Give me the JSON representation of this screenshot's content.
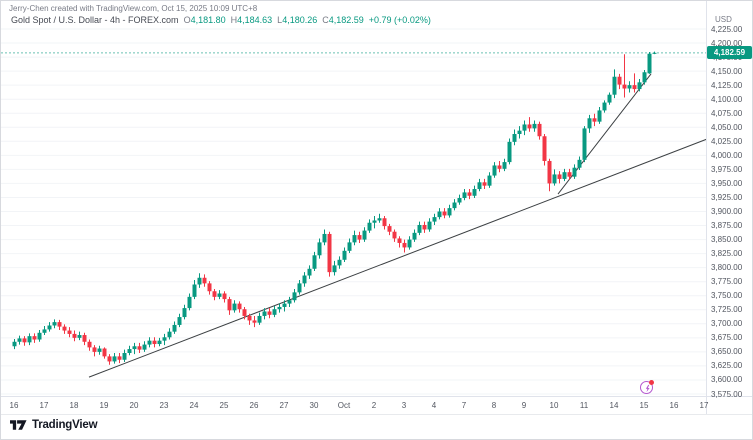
{
  "header": {
    "attribution": "Jerry-Chen created with TradingView.com, Oct 15, 2025 10:09 UTC+8",
    "symbol_title": "Gold Spot / U.S. Dollar - 4h - FOREX.com",
    "ohlc": {
      "o_label": "O",
      "o": "4,181.80",
      "h_label": "H",
      "h": "4,184.63",
      "l_label": "L",
      "l": "4,180.26",
      "c_label": "C",
      "c": "4,182.59"
    },
    "change": "+0.79 (+0.02%)"
  },
  "price_axis": {
    "currency": "USD",
    "current_price": "4,182.59",
    "ticks": [
      "4,225.00",
      "4,200.00",
      "4,175.00",
      "4,150.00",
      "4,125.00",
      "4,100.00",
      "4,075.00",
      "4,050.00",
      "4,025.00",
      "4,000.00",
      "3,975.00",
      "3,950.00",
      "3,925.00",
      "3,900.00",
      "3,875.00",
      "3,850.00",
      "3,825.00",
      "3,800.00",
      "3,775.00",
      "3,750.00",
      "3,725.00",
      "3,700.00",
      "3,675.00",
      "3,650.00",
      "3,625.00",
      "3,600.00",
      "3,575.00"
    ]
  },
  "time_axis": {
    "labels": [
      "16",
      "17",
      "18",
      "19",
      "20",
      "23",
      "24",
      "25",
      "26",
      "27",
      "30",
      "Oct",
      "2",
      "3",
      "4",
      "7",
      "8",
      "9",
      "10",
      "11",
      "14",
      "15",
      "16",
      "17"
    ]
  },
  "footer": {
    "brand": "TradingView"
  },
  "colors": {
    "up": "#089981",
    "down": "#F23645",
    "grid": "#f2f4f7",
    "trendline": "#3c4043",
    "price_line": "#089981",
    "label_bg": "#089981",
    "event": "#b558cf",
    "event_dot": "#f23645"
  },
  "chart_data": {
    "type": "candlestick",
    "title": "Gold Spot / U.S. Dollar",
    "interval": "4h",
    "exchange": "FOREX.com",
    "ylabel": "USD",
    "price_range": [
      3575,
      4225
    ],
    "tick_step": 25,
    "grid": "horizontal-faint",
    "current": {
      "open": 4181.8,
      "high": 4184.63,
      "low": 4180.26,
      "close": 4182.59,
      "change": 0.79,
      "change_pct": 0.02
    },
    "price_line": 4182.59,
    "trendlines": [
      {
        "from_index": 14.9,
        "from_price": 3605,
        "to_index": 138.5,
        "to_price": 4029
      },
      {
        "from_index": 108.7,
        "from_price": 3931,
        "to_index": 127.3,
        "to_price": 4145
      }
    ],
    "candles": [
      [
        3660,
        3673,
        3655,
        3668
      ],
      [
        3668,
        3679,
        3663,
        3674
      ],
      [
        3674,
        3678,
        3661,
        3667
      ],
      [
        3667,
        3683,
        3662,
        3678
      ],
      [
        3678,
        3683,
        3666,
        3672
      ],
      [
        3672,
        3689,
        3668,
        3684
      ],
      [
        3684,
        3696,
        3680,
        3690
      ],
      [
        3690,
        3703,
        3686,
        3697
      ],
      [
        3697,
        3708,
        3692,
        3703
      ],
      [
        3703,
        3707,
        3689,
        3695
      ],
      [
        3695,
        3699,
        3682,
        3688
      ],
      [
        3688,
        3694,
        3676,
        3682
      ],
      [
        3682,
        3688,
        3669,
        3675
      ],
      [
        3675,
        3686,
        3671,
        3680
      ],
      [
        3680,
        3684,
        3662,
        3668
      ],
      [
        3668,
        3672,
        3652,
        3658
      ],
      [
        3658,
        3662,
        3642,
        3650
      ],
      [
        3650,
        3661,
        3645,
        3656
      ],
      [
        3656,
        3658,
        3638,
        3642
      ],
      [
        3642,
        3646,
        3627,
        3633
      ],
      [
        3633,
        3648,
        3629,
        3642
      ],
      [
        3642,
        3648,
        3630,
        3636
      ],
      [
        3636,
        3654,
        3632,
        3648
      ],
      [
        3648,
        3661,
        3644,
        3655
      ],
      [
        3655,
        3666,
        3646,
        3660
      ],
      [
        3660,
        3666,
        3648,
        3654
      ],
      [
        3654,
        3669,
        3650,
        3663
      ],
      [
        3663,
        3676,
        3658,
        3670
      ],
      [
        3670,
        3676,
        3658,
        3664
      ],
      [
        3664,
        3675,
        3660,
        3670
      ],
      [
        3670,
        3682,
        3662,
        3676
      ],
      [
        3676,
        3692,
        3672,
        3686
      ],
      [
        3686,
        3704,
        3682,
        3698
      ],
      [
        3698,
        3718,
        3694,
        3712
      ],
      [
        3712,
        3734,
        3708,
        3728
      ],
      [
        3728,
        3754,
        3724,
        3748
      ],
      [
        3748,
        3778,
        3744,
        3770
      ],
      [
        3770,
        3790,
        3764,
        3782
      ],
      [
        3782,
        3788,
        3766,
        3772
      ],
      [
        3772,
        3776,
        3752,
        3758
      ],
      [
        3758,
        3762,
        3742,
        3748
      ],
      [
        3748,
        3760,
        3744,
        3754
      ],
      [
        3754,
        3758,
        3738,
        3744
      ],
      [
        3744,
        3748,
        3716,
        3724
      ],
      [
        3724,
        3742,
        3720,
        3736
      ],
      [
        3736,
        3740,
        3720,
        3726
      ],
      [
        3726,
        3730,
        3708,
        3714
      ],
      [
        3714,
        3718,
        3698,
        3706
      ],
      [
        3706,
        3714,
        3694,
        3702
      ],
      [
        3702,
        3720,
        3698,
        3714
      ],
      [
        3714,
        3728,
        3708,
        3722
      ],
      [
        3722,
        3728,
        3710,
        3716
      ],
      [
        3716,
        3732,
        3712,
        3726
      ],
      [
        3726,
        3736,
        3720,
        3730
      ],
      [
        3730,
        3742,
        3722,
        3736
      ],
      [
        3736,
        3748,
        3730,
        3742
      ],
      [
        3742,
        3762,
        3738,
        3756
      ],
      [
        3756,
        3778,
        3752,
        3772
      ],
      [
        3772,
        3792,
        3766,
        3786
      ],
      [
        3786,
        3804,
        3780,
        3798
      ],
      [
        3798,
        3828,
        3794,
        3822
      ],
      [
        3822,
        3852,
        3816,
        3845
      ],
      [
        3845,
        3868,
        3840,
        3860
      ],
      [
        3860,
        3864,
        3784,
        3792
      ],
      [
        3792,
        3812,
        3786,
        3804
      ],
      [
        3804,
        3820,
        3798,
        3814
      ],
      [
        3814,
        3836,
        3810,
        3830
      ],
      [
        3830,
        3852,
        3826,
        3845
      ],
      [
        3845,
        3866,
        3840,
        3858
      ],
      [
        3858,
        3864,
        3844,
        3850
      ],
      [
        3850,
        3872,
        3846,
        3866
      ],
      [
        3866,
        3886,
        3862,
        3880
      ],
      [
        3880,
        3892,
        3870,
        3884
      ],
      [
        3884,
        3896,
        3880,
        3888
      ],
      [
        3888,
        3892,
        3868,
        3874
      ],
      [
        3874,
        3878,
        3858,
        3864
      ],
      [
        3864,
        3868,
        3846,
        3852
      ],
      [
        3852,
        3856,
        3836,
        3844
      ],
      [
        3844,
        3850,
        3827,
        3836
      ],
      [
        3836,
        3856,
        3832,
        3850
      ],
      [
        3850,
        3868,
        3846,
        3862
      ],
      [
        3862,
        3882,
        3858,
        3876
      ],
      [
        3876,
        3882,
        3862,
        3868
      ],
      [
        3868,
        3888,
        3864,
        3882
      ],
      [
        3882,
        3896,
        3876,
        3890
      ],
      [
        3890,
        3906,
        3886,
        3900
      ],
      [
        3900,
        3906,
        3888,
        3893
      ],
      [
        3893,
        3912,
        3889,
        3906
      ],
      [
        3906,
        3922,
        3902,
        3916
      ],
      [
        3916,
        3930,
        3912,
        3924
      ],
      [
        3924,
        3940,
        3920,
        3934
      ],
      [
        3934,
        3940,
        3922,
        3928
      ],
      [
        3928,
        3946,
        3924,
        3940
      ],
      [
        3940,
        3958,
        3936,
        3952
      ],
      [
        3952,
        3958,
        3940,
        3946
      ],
      [
        3946,
        3970,
        3942,
        3964
      ],
      [
        3964,
        3988,
        3960,
        3982
      ],
      [
        3982,
        3990,
        3970,
        3976
      ],
      [
        3976,
        3994,
        3972,
        3988
      ],
      [
        3988,
        4030,
        3984,
        4024
      ],
      [
        4024,
        4046,
        4018,
        4038
      ],
      [
        4038,
        4052,
        4030,
        4044
      ],
      [
        4044,
        4062,
        4036,
        4055
      ],
      [
        4055,
        4068,
        4042,
        4048
      ],
      [
        4048,
        4062,
        4042,
        4056
      ],
      [
        4056,
        4060,
        4028,
        4034
      ],
      [
        4034,
        4038,
        3982,
        3990
      ],
      [
        3990,
        3994,
        3936,
        3950
      ],
      [
        3950,
        3975,
        3946,
        3966
      ],
      [
        3966,
        3972,
        3950,
        3958
      ],
      [
        3958,
        3976,
        3954,
        3970
      ],
      [
        3970,
        3976,
        3956,
        3962
      ],
      [
        3962,
        3984,
        3958,
        3978
      ],
      [
        3978,
        3998,
        3974,
        3992
      ],
      [
        3992,
        4052,
        3988,
        4048
      ],
      [
        4048,
        4072,
        4040,
        4066
      ],
      [
        4066,
        4074,
        4052,
        4060
      ],
      [
        4060,
        4086,
        4056,
        4080
      ],
      [
        4080,
        4098,
        4076,
        4094
      ],
      [
        4094,
        4112,
        4090,
        4108
      ],
      [
        4108,
        4153,
        4102,
        4140
      ],
      [
        4140,
        4145,
        4118,
        4126
      ],
      [
        4126,
        4180,
        4103,
        4119
      ],
      [
        4119,
        4132,
        4112,
        4125
      ],
      [
        4125,
        4146,
        4112,
        4118
      ],
      [
        4118,
        4136,
        4114,
        4130
      ],
      [
        4130,
        4152,
        4126,
        4148
      ],
      [
        4146,
        4184,
        4145,
        4181
      ],
      [
        4181.8,
        4184.63,
        4180.26,
        4182.59
      ]
    ]
  }
}
